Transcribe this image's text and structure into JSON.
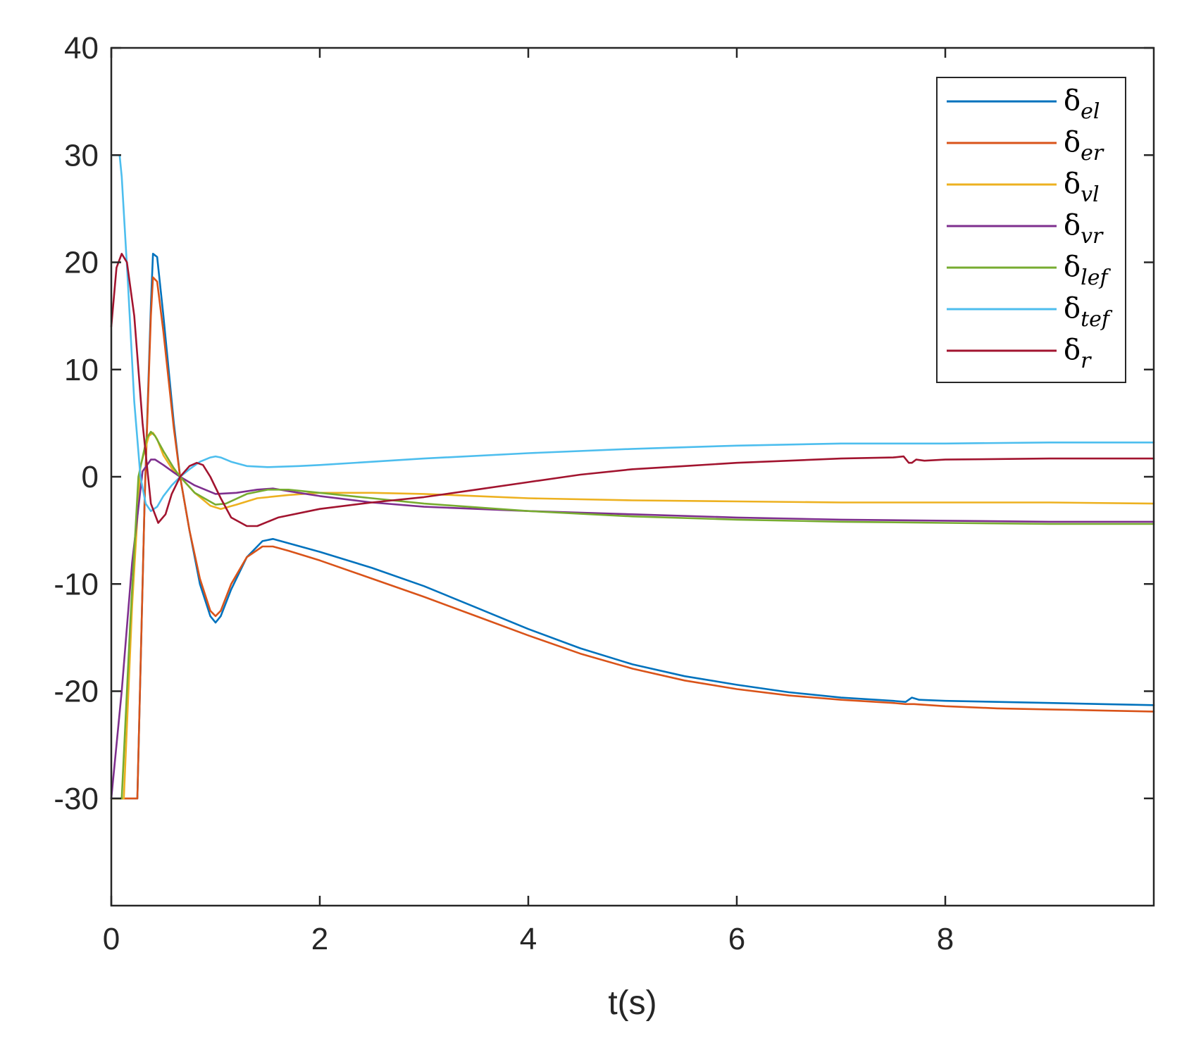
{
  "chart_data": {
    "type": "line",
    "title": "",
    "xlabel": "t(s)",
    "ylabel": "",
    "xlim": [
      0,
      10
    ],
    "ylim": [
      -40,
      40
    ],
    "xticks": [
      0,
      2,
      4,
      6,
      8
    ],
    "xtick_labels": [
      "0",
      "2",
      "4",
      "6",
      "8"
    ],
    "yticks": [
      -30,
      -20,
      -10,
      0,
      10,
      20,
      30,
      40
    ],
    "ytick_labels": [
      "-30",
      "-20",
      "-10",
      "0",
      "10",
      "20",
      "30",
      "40"
    ],
    "grid": false,
    "legend_position": "top-right",
    "series": [
      {
        "name": "δel",
        "symbol": "δ",
        "subscript": "el",
        "color": "#0072BD",
        "x": [
          0,
          0.12,
          0.2,
          0.25,
          0.32,
          0.38,
          0.4,
          0.44,
          0.5,
          0.6,
          0.66,
          0.75,
          0.85,
          0.95,
          1.0,
          1.05,
          1.15,
          1.3,
          1.45,
          1.55,
          1.7,
          2.0,
          2.5,
          3.0,
          3.5,
          4.0,
          4.5,
          5.0,
          5.5,
          6.0,
          6.5,
          7.0,
          7.5,
          7.62,
          7.68,
          7.75,
          8.0,
          8.5,
          9.0,
          9.5,
          10.0
        ],
        "y": [
          -30,
          -30,
          -30,
          -30,
          -2,
          16,
          20.8,
          20.5,
          15,
          5,
          0,
          -5,
          -10,
          -13,
          -13.6,
          -13,
          -10.5,
          -7.5,
          -6,
          -5.8,
          -6.2,
          -7,
          -8.5,
          -10.2,
          -12.2,
          -14.2,
          -16,
          -17.5,
          -18.6,
          -19.4,
          -20.1,
          -20.6,
          -20.9,
          -21,
          -20.6,
          -20.8,
          -20.9,
          -21,
          -21.1,
          -21.2,
          -21.3
        ]
      },
      {
        "name": "δer",
        "symbol": "δ",
        "subscript": "er",
        "color": "#D95319",
        "x": [
          0,
          0.12,
          0.2,
          0.25,
          0.32,
          0.38,
          0.4,
          0.44,
          0.5,
          0.6,
          0.66,
          0.75,
          0.85,
          0.95,
          1.0,
          1.05,
          1.15,
          1.3,
          1.45,
          1.55,
          1.7,
          2.0,
          2.5,
          3.0,
          3.5,
          4.0,
          4.5,
          5.0,
          5.5,
          6.0,
          6.5,
          7.0,
          7.5,
          7.62,
          7.7,
          8.0,
          8.5,
          9.0,
          9.5,
          10.0
        ],
        "y": [
          -30,
          -30,
          -30,
          -30,
          -2,
          15,
          18.6,
          18.2,
          13.5,
          4.5,
          0,
          -5,
          -9.5,
          -12.5,
          -13,
          -12.5,
          -10,
          -7.5,
          -6.5,
          -6.5,
          -6.9,
          -7.8,
          -9.5,
          -11.2,
          -13,
          -14.8,
          -16.5,
          -17.9,
          -19,
          -19.8,
          -20.4,
          -20.8,
          -21.1,
          -21.2,
          -21.2,
          -21.4,
          -21.6,
          -21.7,
          -21.8,
          -21.9
        ]
      },
      {
        "name": "δvl",
        "symbol": "δ",
        "subscript": "vl",
        "color": "#EDB120",
        "x": [
          0,
          0.08,
          0.12,
          0.2,
          0.28,
          0.36,
          0.4,
          0.44,
          0.5,
          0.6,
          0.66,
          0.8,
          0.95,
          1.05,
          1.2,
          1.4,
          1.7,
          2.0,
          2.5,
          3.0,
          3.5,
          4.0,
          5.0,
          6.0,
          7.0,
          8.0,
          9.0,
          10.0
        ],
        "y": [
          -30,
          -30,
          -30,
          -12,
          1,
          3.8,
          4.1,
          3.5,
          2,
          0.5,
          0,
          -1.5,
          -2.7,
          -3,
          -2.6,
          -2,
          -1.7,
          -1.5,
          -1.5,
          -1.6,
          -1.8,
          -2,
          -2.2,
          -2.3,
          -2.4,
          -2.4,
          -2.4,
          -2.5
        ]
      },
      {
        "name": "δvr",
        "symbol": "δ",
        "subscript": "vr",
        "color": "#7E2F8E",
        "x": [
          0,
          0.1,
          0.2,
          0.3,
          0.38,
          0.42,
          0.5,
          0.6,
          0.66,
          0.8,
          1.0,
          1.2,
          1.4,
          1.55,
          1.8,
          2.0,
          2.5,
          3.0,
          4.0,
          5.0,
          6.0,
          7.0,
          8.0,
          9.0,
          10.0
        ],
        "y": [
          -30,
          -20,
          -8,
          0.5,
          1.6,
          1.6,
          1.1,
          0.4,
          0,
          -0.8,
          -1.6,
          -1.5,
          -1.2,
          -1.1,
          -1.5,
          -1.8,
          -2.4,
          -2.8,
          -3.2,
          -3.5,
          -3.8,
          -4.0,
          -4.1,
          -4.2,
          -4.2
        ]
      },
      {
        "name": "δlef",
        "symbol": "δ",
        "subscript": "lef",
        "color": "#77AC30",
        "x": [
          0,
          0.05,
          0.1,
          0.18,
          0.26,
          0.34,
          0.38,
          0.42,
          0.5,
          0.6,
          0.66,
          0.8,
          1.0,
          1.1,
          1.3,
          1.5,
          1.7,
          2.0,
          2.5,
          3.0,
          4.0,
          5.0,
          6.0,
          7.0,
          8.0,
          9.0,
          10.0
        ],
        "y": [
          -30,
          -30,
          -30,
          -14,
          0,
          3.6,
          4.2,
          3.8,
          2.4,
          0.8,
          0,
          -1.5,
          -2.6,
          -2.5,
          -1.6,
          -1.2,
          -1.2,
          -1.5,
          -2.0,
          -2.5,
          -3.2,
          -3.7,
          -4.0,
          -4.2,
          -4.3,
          -4.4,
          -4.4
        ]
      },
      {
        "name": "δtef",
        "symbol": "δ",
        "subscript": "tef",
        "color": "#4DBEEE",
        "x": [
          0,
          0.08,
          0.1,
          0.16,
          0.22,
          0.28,
          0.33,
          0.38,
          0.44,
          0.5,
          0.58,
          0.66,
          0.75,
          0.85,
          0.95,
          1.0,
          1.05,
          1.15,
          1.3,
          1.5,
          1.8,
          2.0,
          2.5,
          3.0,
          4.0,
          5.0,
          6.0,
          7.0,
          7.6,
          8.0,
          9.0,
          10.0
        ],
        "y": [
          30,
          30,
          28,
          18,
          7,
          0,
          -2.5,
          -3.2,
          -2.8,
          -1.8,
          -0.8,
          0,
          0.7,
          1.4,
          1.8,
          1.9,
          1.8,
          1.4,
          1.0,
          0.9,
          1.0,
          1.1,
          1.4,
          1.7,
          2.2,
          2.6,
          2.9,
          3.1,
          3.1,
          3.1,
          3.2,
          3.2
        ]
      },
      {
        "name": "δr",
        "symbol": "δ",
        "subscript": "r",
        "color": "#A2142F",
        "x": [
          0,
          0.05,
          0.1,
          0.15,
          0.22,
          0.3,
          0.38,
          0.45,
          0.52,
          0.58,
          0.66,
          0.75,
          0.82,
          0.88,
          0.95,
          1.05,
          1.15,
          1.3,
          1.4,
          1.6,
          2.0,
          2.5,
          3.0,
          3.5,
          4.0,
          4.5,
          5.0,
          5.5,
          6.0,
          6.5,
          7.0,
          7.5,
          7.6,
          7.65,
          7.68,
          7.72,
          7.8,
          8.0,
          9.0,
          10.0
        ],
        "y": [
          14,
          19.5,
          20.8,
          20,
          15,
          5,
          -2.5,
          -4.3,
          -3.5,
          -1.6,
          0,
          1,
          1.3,
          1.1,
          0,
          -2,
          -3.8,
          -4.6,
          -4.6,
          -3.8,
          -3.0,
          -2.4,
          -1.9,
          -1.2,
          -0.5,
          0.2,
          0.7,
          1.0,
          1.3,
          1.5,
          1.7,
          1.8,
          1.9,
          1.3,
          1.3,
          1.6,
          1.5,
          1.6,
          1.7,
          1.7
        ]
      }
    ]
  }
}
